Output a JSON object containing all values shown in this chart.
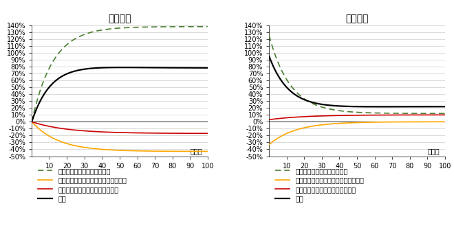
{
  "title_left": "労働所得",
  "title_right": "資本所得",
  "xlabel": "四半期",
  "ylim": [
    -0.5,
    1.4
  ],
  "yticks": [
    -0.5,
    -0.4,
    -0.3,
    -0.2,
    -0.1,
    0.0,
    0.1,
    0.2,
    0.3,
    0.4,
    0.5,
    0.6,
    0.7,
    0.8,
    0.9,
    1.0,
    1.1,
    1.2,
    1.3,
    1.4
  ],
  "xlim": [
    0,
    100
  ],
  "xticks": [
    10,
    20,
    30,
    40,
    50,
    60,
    70,
    80,
    90,
    100
  ],
  "legend_labels": [
    "法人実効税率引下げ分の帰着",
    "事業税付加価値割税率引上げ分の帰着",
    "事業税資本割税率引上げ分の帰着",
    "合計"
  ],
  "colors": {
    "green": "#4a7c2f",
    "yellow": "#ffa500",
    "red": "#cc0000",
    "black": "#000000"
  },
  "background_color": "#ffffff",
  "grid_color": "#cccccc",
  "left_curves": {
    "green_asymptote": 1.38,
    "green_tau": 12,
    "yellow_asymptote": -0.43,
    "yellow_tau": 15,
    "red_asymptote": -0.17,
    "red_tau": 20
  },
  "right_curves": {
    "green_base": 0.12,
    "green_amp": 1.13,
    "green_tau": 12,
    "yellow_amp": -0.33,
    "yellow_tau": 15,
    "red_base": 0.1,
    "red_amp": -0.07,
    "red_tau": 20
  }
}
